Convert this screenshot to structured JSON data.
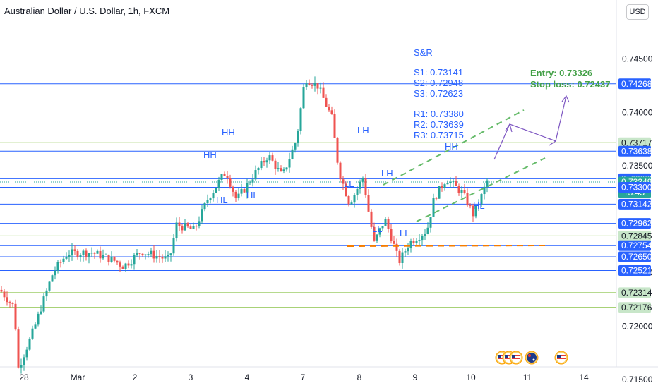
{
  "header": {
    "title": "Australian Dollar / U.S. Dollar, 1h, FXCM",
    "currency": "USD"
  },
  "chart_data": {
    "type": "candlestick",
    "ylim": [
      0.7141,
      0.7467
    ],
    "y_ticks": [
      "0.74500",
      "0.74000",
      "0.73500",
      "0.72500",
      "0.72000",
      "0.71500"
    ],
    "x_ticks": [
      "28",
      "Mar",
      "2",
      "3",
      "4",
      "7",
      "8",
      "9",
      "10",
      "11",
      "14"
    ],
    "levels": [
      {
        "label": "0.74268",
        "value": 0.74268,
        "color": "#2962ff"
      },
      {
        "label": "0.73717",
        "value": 0.73717,
        "color": "#8bc34a"
      },
      {
        "label": "0.73638",
        "value": 0.73638,
        "color": "#2962ff"
      },
      {
        "label": "0.73380",
        "value": 0.7338,
        "color": "#2962ff"
      },
      {
        "label": "0.73349",
        "value": 0.73349,
        "color": "#26a69a"
      },
      {
        "label": "0.73300",
        "value": 0.733,
        "color": "#2962ff"
      },
      {
        "label": "0.73142",
        "value": 0.73142,
        "color": "#2962ff"
      },
      {
        "label": "0.72962",
        "value": 0.72962,
        "color": "#2962ff"
      },
      {
        "label": "0.72845",
        "value": 0.72845,
        "color": "#8bc34a"
      },
      {
        "label": "0.72754",
        "value": 0.72754,
        "color": "#2962ff"
      },
      {
        "label": "0.72650",
        "value": 0.7265,
        "color": "#2962ff"
      },
      {
        "label": "0.72521",
        "value": 0.72521,
        "color": "#2962ff"
      },
      {
        "label": "0.72314",
        "value": 0.72314,
        "color": "#8bc34a"
      },
      {
        "label": "0.72176",
        "value": 0.72176,
        "color": "#8bc34a"
      }
    ],
    "countdown": "13:45",
    "snr_title": "S&R",
    "support": [
      "S1: 0.73141",
      "S2: 0.72948",
      "S3: 0.72623"
    ],
    "resistance": [
      "R1: 0.73380",
      "R2: 0.73639",
      "R3: 0.73715"
    ],
    "trade": {
      "entry": "Entry: 0.73326",
      "stop_loss": "Stop loss: 0.72437"
    },
    "structure_labels": [
      "HH",
      "HH",
      "HL",
      "HL",
      "LH",
      "LL",
      "LH",
      "LL",
      "LL",
      "HH",
      "HL"
    ],
    "colors": {
      "up": "#26a69a",
      "down": "#ef5350",
      "level": "#2962ff",
      "zone": "#8bc34a",
      "trade_text": "#43a047",
      "projection": "#7e57c2",
      "orange": "#f57c00"
    }
  }
}
